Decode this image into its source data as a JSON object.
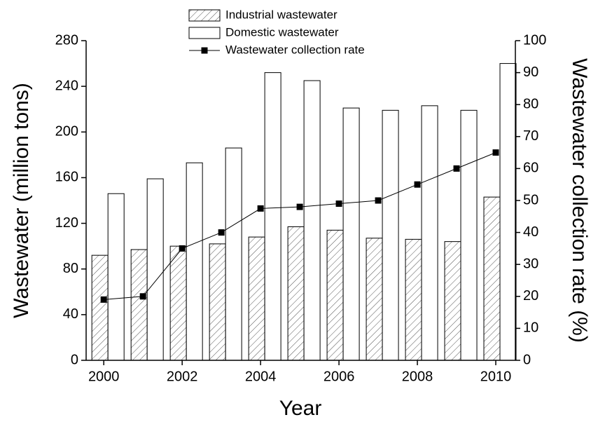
{
  "chart_data": {
    "type": "bar-line",
    "x": [
      2000,
      2001,
      2002,
      2003,
      2004,
      2005,
      2006,
      2007,
      2008,
      2009,
      2010
    ],
    "x_label": "Year",
    "y_label": "Wastewater (million tons)",
    "y2_label": "Wastewater collection rate (%)",
    "xlim": [
      1999.55,
      2010.5
    ],
    "xticks": [
      2000,
      2002,
      2004,
      2006,
      2008,
      2010
    ],
    "ylim": [
      0,
      280
    ],
    "yticks": [
      0,
      40,
      80,
      120,
      160,
      200,
      240,
      280
    ],
    "y2lim": [
      0,
      100
    ],
    "y2ticks": [
      0,
      10,
      20,
      30,
      40,
      50,
      60,
      70,
      80,
      90,
      100
    ],
    "series": [
      {
        "name": "Industrial wastewater",
        "type": "bar",
        "pattern": "hatch",
        "color": "#ffffff",
        "values": [
          92,
          97,
          100,
          102,
          108,
          117,
          114,
          107,
          106,
          104,
          143
        ]
      },
      {
        "name": "Domestic wastewater",
        "type": "bar",
        "color": "#ffffff",
        "values": [
          146,
          159,
          173,
          186,
          252,
          245,
          221,
          219,
          223,
          219,
          260
        ]
      },
      {
        "name": "Wastewater collection rate",
        "type": "line",
        "axis": "y2",
        "color": "#000000",
        "values": [
          19,
          20,
          35,
          40,
          47.5,
          48,
          49,
          50,
          55,
          60,
          65
        ]
      }
    ]
  }
}
